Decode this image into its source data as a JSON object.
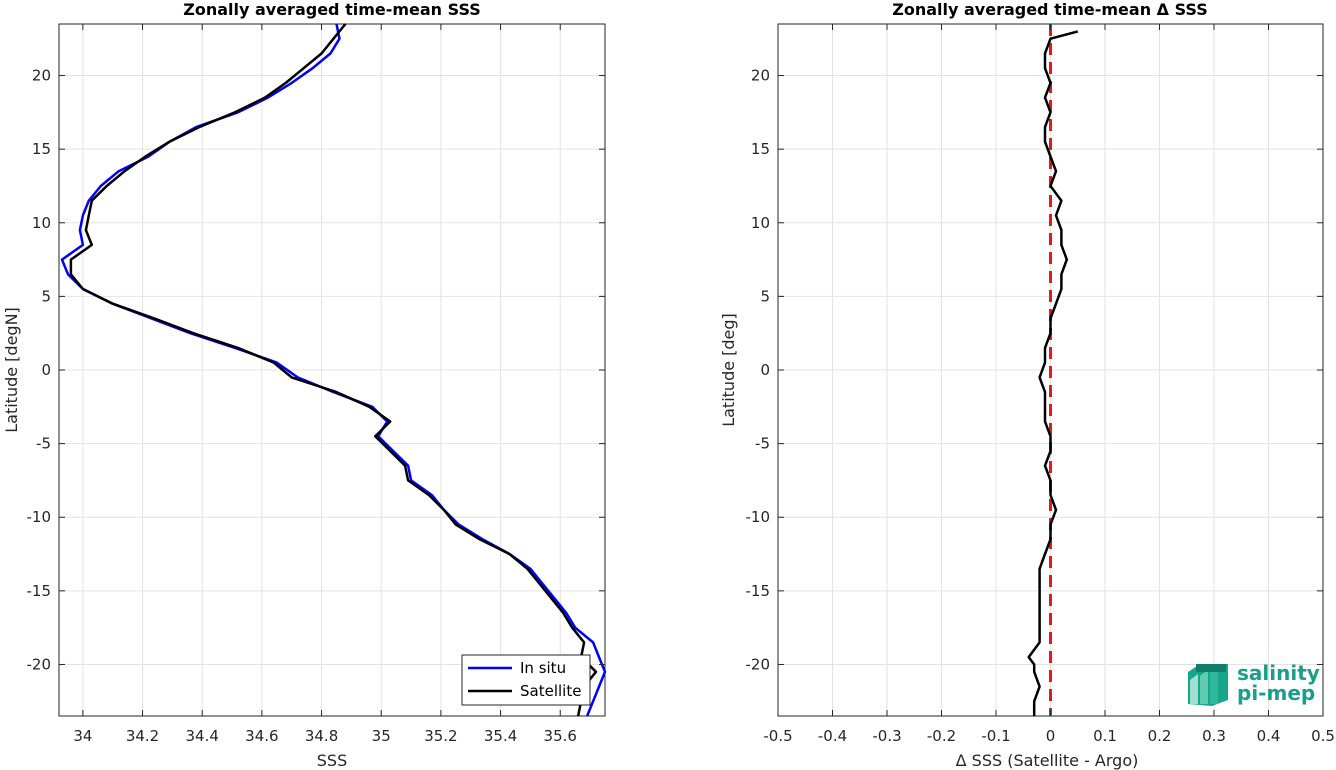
{
  "chart_data": [
    {
      "type": "line",
      "title": "Zonally averaged time-mean SSS",
      "xlabel": "SSS",
      "ylabel": "Latitude [degN]",
      "xlim": [
        33.92,
        35.75
      ],
      "ylim": [
        -23.5,
        23.5
      ],
      "xticks": [
        34,
        34.2,
        34.4,
        34.6,
        34.8,
        35,
        35.2,
        35.4,
        35.6
      ],
      "xtick_labels": [
        "34",
        "34.2",
        "34.4",
        "34.6",
        "34.8",
        "35",
        "35.2",
        "35.4",
        "35.6"
      ],
      "yticks": [
        -20,
        -15,
        -10,
        -5,
        0,
        5,
        10,
        15,
        20
      ],
      "ytick_labels": [
        "-20",
        "-15",
        "-10",
        "-5",
        "0",
        "5",
        "10",
        "15",
        "20"
      ],
      "grid": true,
      "legend": {
        "position": "bottom-right"
      },
      "series": [
        {
          "name": "In situ",
          "color": "#0000ff",
          "points": [
            [
              34.85,
              23.5
            ],
            [
              34.86,
              22.5
            ],
            [
              34.83,
              21.5
            ],
            [
              34.77,
              20.5
            ],
            [
              34.7,
              19.5
            ],
            [
              34.62,
              18.5
            ],
            [
              34.52,
              17.5
            ],
            [
              34.38,
              16.5
            ],
            [
              34.29,
              15.5
            ],
            [
              34.22,
              14.5
            ],
            [
              34.12,
              13.5
            ],
            [
              34.06,
              12.5
            ],
            [
              34.02,
              11.5
            ],
            [
              34.0,
              10.5
            ],
            [
              33.99,
              9.5
            ],
            [
              34.0,
              8.5
            ],
            [
              33.93,
              7.5
            ],
            [
              33.95,
              6.5
            ],
            [
              34.0,
              5.5
            ],
            [
              34.1,
              4.5
            ],
            [
              34.23,
              3.5
            ],
            [
              34.36,
              2.5
            ],
            [
              34.51,
              1.5
            ],
            [
              34.65,
              0.5
            ],
            [
              34.72,
              -0.5
            ],
            [
              34.84,
              -1.5
            ],
            [
              34.97,
              -2.5
            ],
            [
              35.02,
              -3.5
            ],
            [
              34.99,
              -4.5
            ],
            [
              35.04,
              -5.5
            ],
            [
              35.09,
              -6.5
            ],
            [
              35.1,
              -7.5
            ],
            [
              35.17,
              -8.5
            ],
            [
              35.21,
              -9.5
            ],
            [
              35.26,
              -10.5
            ],
            [
              35.34,
              -11.5
            ],
            [
              35.43,
              -12.5
            ],
            [
              35.5,
              -13.5
            ],
            [
              35.54,
              -14.5
            ],
            [
              35.58,
              -15.5
            ],
            [
              35.62,
              -16.5
            ],
            [
              35.65,
              -17.5
            ],
            [
              35.71,
              -18.5
            ],
            [
              35.73,
              -19.5
            ],
            [
              35.75,
              -20.5
            ],
            [
              35.73,
              -21.5
            ],
            [
              35.71,
              -22.5
            ],
            [
              35.69,
              -23.5
            ]
          ]
        },
        {
          "name": "Satellite",
          "color": "#000000",
          "points": [
            [
              34.88,
              23.5
            ],
            [
              34.84,
              22.5
            ],
            [
              34.8,
              21.5
            ],
            [
              34.74,
              20.5
            ],
            [
              34.68,
              19.5
            ],
            [
              34.61,
              18.5
            ],
            [
              34.51,
              17.5
            ],
            [
              34.39,
              16.5
            ],
            [
              34.29,
              15.5
            ],
            [
              34.21,
              14.5
            ],
            [
              34.14,
              13.5
            ],
            [
              34.08,
              12.5
            ],
            [
              34.03,
              11.5
            ],
            [
              34.02,
              10.5
            ],
            [
              34.01,
              9.5
            ],
            [
              34.03,
              8.5
            ],
            [
              33.96,
              7.5
            ],
            [
              33.96,
              6.5
            ],
            [
              34.0,
              5.5
            ],
            [
              34.1,
              4.5
            ],
            [
              34.24,
              3.5
            ],
            [
              34.37,
              2.5
            ],
            [
              34.52,
              1.5
            ],
            [
              34.64,
              0.5
            ],
            [
              34.7,
              -0.5
            ],
            [
              34.85,
              -1.5
            ],
            [
              34.96,
              -2.5
            ],
            [
              35.03,
              -3.5
            ],
            [
              34.98,
              -4.5
            ],
            [
              35.03,
              -5.5
            ],
            [
              35.08,
              -6.5
            ],
            [
              35.09,
              -7.5
            ],
            [
              35.16,
              -8.5
            ],
            [
              35.21,
              -9.5
            ],
            [
              35.25,
              -10.5
            ],
            [
              35.33,
              -11.5
            ],
            [
              35.43,
              -12.5
            ],
            [
              35.49,
              -13.5
            ],
            [
              35.53,
              -14.5
            ],
            [
              35.57,
              -15.5
            ],
            [
              35.61,
              -16.5
            ],
            [
              35.64,
              -17.5
            ],
            [
              35.68,
              -18.5
            ],
            [
              35.67,
              -19.5
            ],
            [
              35.72,
              -20.5
            ],
            [
              35.68,
              -21.5
            ],
            [
              35.67,
              -22.5
            ],
            [
              35.66,
              -23.5
            ]
          ]
        }
      ]
    },
    {
      "type": "line",
      "title": "Zonally averaged time-mean Δ SSS",
      "xlabel": "Δ SSS (Satellite - Argo)",
      "ylabel": "Latitude [deg]",
      "xlim": [
        -0.5,
        0.5
      ],
      "ylim": [
        -23.5,
        23.5
      ],
      "xticks": [
        -0.5,
        -0.4,
        -0.3,
        -0.2,
        -0.1,
        0,
        0.1,
        0.2,
        0.3,
        0.4,
        0.5
      ],
      "xtick_labels": [
        "-0.5",
        "-0.4",
        "-0.3",
        "-0.2",
        "-0.1",
        "0",
        "0.1",
        "0.2",
        "0.3",
        "0.4",
        "0.5"
      ],
      "yticks": [
        -20,
        -15,
        -10,
        -5,
        0,
        5,
        10,
        15,
        20
      ],
      "ytick_labels": [
        "-20",
        "-15",
        "-10",
        "-5",
        "0",
        "5",
        "10",
        "15",
        "20"
      ],
      "grid": true,
      "reference_line": {
        "x": 0,
        "color": "#e31a1c",
        "style": "dashed"
      },
      "series": [
        {
          "name": "",
          "color": "#000000",
          "points": [
            [
              0.05,
              23.0
            ],
            [
              0.0,
              22.5
            ],
            [
              -0.01,
              21.5
            ],
            [
              -0.01,
              20.5
            ],
            [
              0.0,
              19.5
            ],
            [
              -0.01,
              18.5
            ],
            [
              0.0,
              17.5
            ],
            [
              -0.01,
              16.5
            ],
            [
              -0.01,
              15.5
            ],
            [
              0.0,
              14.5
            ],
            [
              0.01,
              13.5
            ],
            [
              0.0,
              12.5
            ],
            [
              0.02,
              11.5
            ],
            [
              0.01,
              10.5
            ],
            [
              0.02,
              9.5
            ],
            [
              0.02,
              8.5
            ],
            [
              0.03,
              7.5
            ],
            [
              0.02,
              6.5
            ],
            [
              0.02,
              5.5
            ],
            [
              0.01,
              4.5
            ],
            [
              0.0,
              3.5
            ],
            [
              0.0,
              2.5
            ],
            [
              -0.01,
              1.5
            ],
            [
              -0.01,
              0.5
            ],
            [
              -0.02,
              -0.5
            ],
            [
              -0.01,
              -1.5
            ],
            [
              -0.01,
              -2.5
            ],
            [
              -0.01,
              -3.5
            ],
            [
              0.0,
              -4.5
            ],
            [
              0.0,
              -5.5
            ],
            [
              -0.01,
              -6.5
            ],
            [
              0.0,
              -7.5
            ],
            [
              0.0,
              -8.5
            ],
            [
              0.01,
              -9.5
            ],
            [
              0.0,
              -10.5
            ],
            [
              0.0,
              -11.5
            ],
            [
              -0.01,
              -12.5
            ],
            [
              -0.02,
              -13.5
            ],
            [
              -0.02,
              -14.5
            ],
            [
              -0.02,
              -15.5
            ],
            [
              -0.02,
              -16.5
            ],
            [
              -0.02,
              -17.5
            ],
            [
              -0.02,
              -18.5
            ],
            [
              -0.04,
              -19.5
            ],
            [
              -0.03,
              -20.0
            ],
            [
              -0.03,
              -20.5
            ],
            [
              -0.02,
              -21.5
            ],
            [
              -0.03,
              -22.5
            ],
            [
              -0.03,
              -23.5
            ]
          ]
        }
      ]
    }
  ],
  "logo": {
    "line1": "salinity",
    "line2": "pi-mep"
  }
}
